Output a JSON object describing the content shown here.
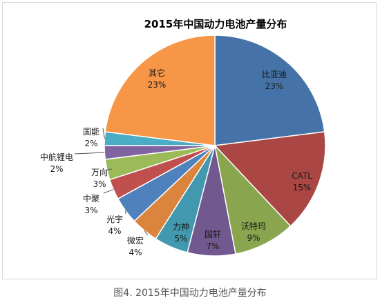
{
  "chart_data": {
    "type": "pie",
    "title": "2015年中国动力电池产量分布",
    "slices": [
      {
        "name": "比亚迪",
        "value": 23,
        "label": "23%",
        "color": "#4572A7"
      },
      {
        "name": "CATL",
        "value": 15,
        "label": "15%",
        "color": "#AA4643"
      },
      {
        "name": "沃特玛",
        "value": 9,
        "label": "9%",
        "color": "#89A54E"
      },
      {
        "name": "国轩",
        "value": 7,
        "label": "7%",
        "color": "#71588F"
      },
      {
        "name": "力神",
        "value": 5,
        "label": "5%",
        "color": "#4198AF"
      },
      {
        "name": "微宏",
        "value": 4,
        "label": "4%",
        "color": "#DB843D"
      },
      {
        "name": "光宇",
        "value": 4,
        "label": "4%",
        "color": "#4F81BD"
      },
      {
        "name": "中聚",
        "value": 3,
        "label": "3%",
        "color": "#C0504D"
      },
      {
        "name": "万向",
        "value": 3,
        "label": "3%",
        "color": "#9BBB59"
      },
      {
        "name": "中航锂电",
        "value": 2,
        "label": "2%",
        "color": "#8064A2"
      },
      {
        "name": "国能",
        "value": 2,
        "label": "2%",
        "color": "#4BACC6"
      },
      {
        "name": "其它",
        "value": 23,
        "label": "23%",
        "color": "#F79646"
      }
    ]
  },
  "caption": "图4. 2015年中国动力电池产量分布"
}
